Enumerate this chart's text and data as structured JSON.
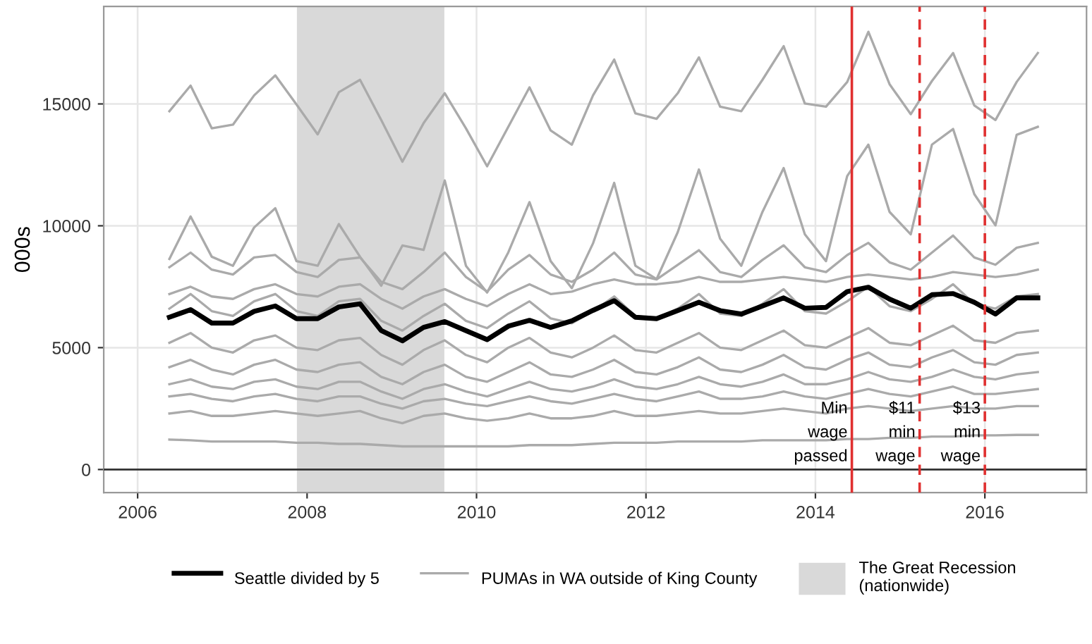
{
  "chart_data": {
    "type": "line",
    "ylabel": "000s",
    "x": [
      2006.375,
      2006.625,
      2006.875,
      2007.125,
      2007.375,
      2007.625,
      2007.875,
      2008.125,
      2008.375,
      2008.625,
      2008.875,
      2009.125,
      2009.375,
      2009.625,
      2009.875,
      2010.125,
      2010.375,
      2010.625,
      2010.875,
      2011.125,
      2011.375,
      2011.625,
      2011.875,
      2012.125,
      2012.375,
      2012.625,
      2012.875,
      2013.125,
      2013.375,
      2013.625,
      2013.875,
      2014.125,
      2014.375,
      2014.625,
      2014.875,
      2015.125,
      2015.375,
      2015.625,
      2015.875,
      2016.125,
      2016.375,
      2016.625
    ],
    "xlim": [
      2005.6,
      2017.2
    ],
    "xticks": [
      2006,
      2008,
      2010,
      2012,
      2014,
      2016
    ],
    "ylim": [
      -950,
      19000
    ],
    "yticks": [
      0,
      5000,
      10000,
      15000
    ],
    "grid": true,
    "legend": "bottom",
    "series": [
      {
        "name": "Seattle divided by 5",
        "color": "#000000",
        "values": [
          6250,
          6560,
          6010,
          6010,
          6490,
          6710,
          6190,
          6190,
          6670,
          6800,
          5700,
          5280,
          5830,
          6070,
          5700,
          5330,
          5880,
          6120,
          5830,
          6100,
          6530,
          6930,
          6250,
          6190,
          6520,
          6860,
          6520,
          6380,
          6710,
          7040,
          6620,
          6650,
          7300,
          7480,
          6990,
          6620,
          7170,
          7220,
          6860,
          6380,
          7040,
          7040
        ]
      },
      {
        "name": "PUMAs in WA outside of King County",
        "color": "#aaaaaa",
        "values": [
          14700,
          15750,
          14000,
          14150,
          15350,
          16170,
          14980,
          13750,
          15480,
          15990,
          14340,
          12630,
          14210,
          15440,
          14000,
          12440,
          14060,
          15680,
          13910,
          13330,
          15350,
          16820,
          14610,
          14390,
          15440,
          16910,
          14890,
          14700,
          15990,
          17370,
          15020,
          14890,
          15900,
          17960,
          15810,
          14580,
          15940,
          17090,
          14940,
          14340,
          15900,
          17090
        ]
      },
      {
        "color": "#aaaaaa",
        "values": [
          8640,
          10380,
          8730,
          8360,
          9930,
          10720,
          8550,
          8360,
          10070,
          8730,
          7540,
          9190,
          9010,
          11860,
          8360,
          7260,
          8910,
          10970,
          8550,
          7440,
          9280,
          11760,
          8360,
          7810,
          9740,
          12310,
          9470,
          8360,
          10570,
          12370,
          9650,
          8550,
          12040,
          13330,
          10570,
          9650,
          13330,
          13970,
          11300,
          10020,
          13730,
          14060
        ]
      },
      {
        "color": "#aaaaaa",
        "values": [
          8300,
          8900,
          8200,
          8000,
          8700,
          8800,
          8100,
          7900,
          8600,
          8700,
          7700,
          7400,
          8100,
          8900,
          7900,
          7300,
          8200,
          8800,
          8000,
          7700,
          8200,
          8900,
          8000,
          7800,
          8400,
          9000,
          8100,
          7900,
          8600,
          9200,
          8300,
          8100,
          8800,
          9300,
          8500,
          8200,
          8900,
          9600,
          8700,
          8400,
          9100,
          9300
        ]
      },
      {
        "color": "#aaaaaa",
        "values": [
          7200,
          7500,
          7100,
          7000,
          7400,
          7600,
          7200,
          7100,
          7500,
          7600,
          7000,
          6600,
          7100,
          7400,
          7000,
          6700,
          7200,
          7600,
          7200,
          7300,
          7600,
          7800,
          7600,
          7600,
          7700,
          7900,
          7700,
          7700,
          7800,
          7900,
          7800,
          7700,
          7900,
          8000,
          7900,
          7800,
          7900,
          8100,
          8000,
          7900,
          8000,
          8200
        ]
      },
      {
        "color": "#aaaaaa",
        "values": [
          6600,
          7200,
          6500,
          6300,
          6900,
          7200,
          6500,
          6300,
          6900,
          7000,
          6100,
          5700,
          6300,
          6800,
          6100,
          5800,
          6400,
          6900,
          6200,
          6000,
          6500,
          7100,
          6300,
          6200,
          6600,
          7200,
          6400,
          6300,
          6800,
          7400,
          6500,
          6400,
          6900,
          7500,
          6700,
          6500,
          7000,
          7600,
          6800,
          6600,
          7100,
          7200
        ]
      },
      {
        "color": "#aaaaaa",
        "values": [
          5200,
          5600,
          5000,
          4800,
          5300,
          5500,
          5000,
          4900,
          5300,
          5400,
          4700,
          4300,
          4900,
          5300,
          4700,
          4400,
          5000,
          5400,
          4800,
          4600,
          5000,
          5500,
          4900,
          4800,
          5200,
          5600,
          5000,
          4900,
          5300,
          5700,
          5100,
          5000,
          5400,
          5800,
          5200,
          5100,
          5500,
          5900,
          5300,
          5200,
          5600,
          5700
        ]
      },
      {
        "color": "#aaaaaa",
        "values": [
          4200,
          4500,
          4100,
          3900,
          4300,
          4500,
          4100,
          4000,
          4300,
          4400,
          3800,
          3500,
          4000,
          4300,
          3800,
          3600,
          4000,
          4400,
          3900,
          3800,
          4100,
          4500,
          4000,
          3900,
          4200,
          4600,
          4100,
          4000,
          4300,
          4700,
          4200,
          4100,
          4500,
          4800,
          4300,
          4200,
          4600,
          4900,
          4400,
          4300,
          4700,
          4800
        ]
      },
      {
        "color": "#aaaaaa",
        "values": [
          3500,
          3700,
          3400,
          3300,
          3600,
          3700,
          3400,
          3300,
          3600,
          3600,
          3200,
          2900,
          3300,
          3500,
          3200,
          3000,
          3300,
          3600,
          3300,
          3200,
          3400,
          3700,
          3400,
          3300,
          3500,
          3800,
          3500,
          3400,
          3600,
          3900,
          3500,
          3500,
          3700,
          4000,
          3700,
          3600,
          3800,
          4100,
          3800,
          3700,
          3900,
          4000
        ]
      },
      {
        "color": "#aaaaaa",
        "values": [
          3000,
          3100,
          2900,
          2800,
          3000,
          3100,
          2900,
          2800,
          3000,
          3000,
          2700,
          2500,
          2800,
          2900,
          2700,
          2600,
          2800,
          3000,
          2800,
          2700,
          2900,
          3100,
          2900,
          2800,
          3000,
          3200,
          2900,
          2900,
          3000,
          3200,
          3000,
          2900,
          3100,
          3300,
          3100,
          3000,
          3200,
          3400,
          3100,
          3100,
          3200,
          3300
        ]
      },
      {
        "color": "#aaaaaa",
        "values": [
          2300,
          2400,
          2200,
          2200,
          2300,
          2400,
          2300,
          2200,
          2300,
          2400,
          2100,
          1900,
          2200,
          2300,
          2100,
          2000,
          2100,
          2300,
          2100,
          2100,
          2200,
          2400,
          2200,
          2200,
          2300,
          2400,
          2300,
          2300,
          2400,
          2500,
          2400,
          2300,
          2500,
          2600,
          2500,
          2400,
          2500,
          2600,
          2500,
          2500,
          2600,
          2600
        ]
      },
      {
        "color": "#aaaaaa",
        "values": [
          1230,
          1200,
          1150,
          1150,
          1150,
          1150,
          1100,
          1100,
          1050,
          1050,
          1000,
          950,
          950,
          950,
          950,
          950,
          950,
          1000,
          1000,
          1000,
          1050,
          1100,
          1100,
          1100,
          1150,
          1150,
          1150,
          1150,
          1200,
          1200,
          1200,
          1200,
          1250,
          1250,
          1300,
          1300,
          1350,
          1350,
          1400,
          1400,
          1420,
          1420
        ]
      }
    ],
    "ref_lines": [
      {
        "axis": "y",
        "value": 0,
        "color": "#333333",
        "line_style": "solid"
      },
      {
        "axis": "x",
        "value": 2014.43,
        "label": "Min\nwage\npassed",
        "color": "#e03030",
        "line_style": "solid"
      },
      {
        "axis": "x",
        "value": 2015.23,
        "label": "$11\nmin\nwage",
        "color": "#e03030",
        "line_style": "dashed"
      },
      {
        "axis": "x",
        "value": 2016.0,
        "label": "$13\nmin\nwage",
        "color": "#e03030",
        "line_style": "dashed"
      }
    ],
    "bands": [
      {
        "axis": "x",
        "from": 2007.88,
        "to": 2009.62,
        "label": "The Great Recession\n(nationwide)",
        "color": "#d9d9d9"
      }
    ]
  }
}
